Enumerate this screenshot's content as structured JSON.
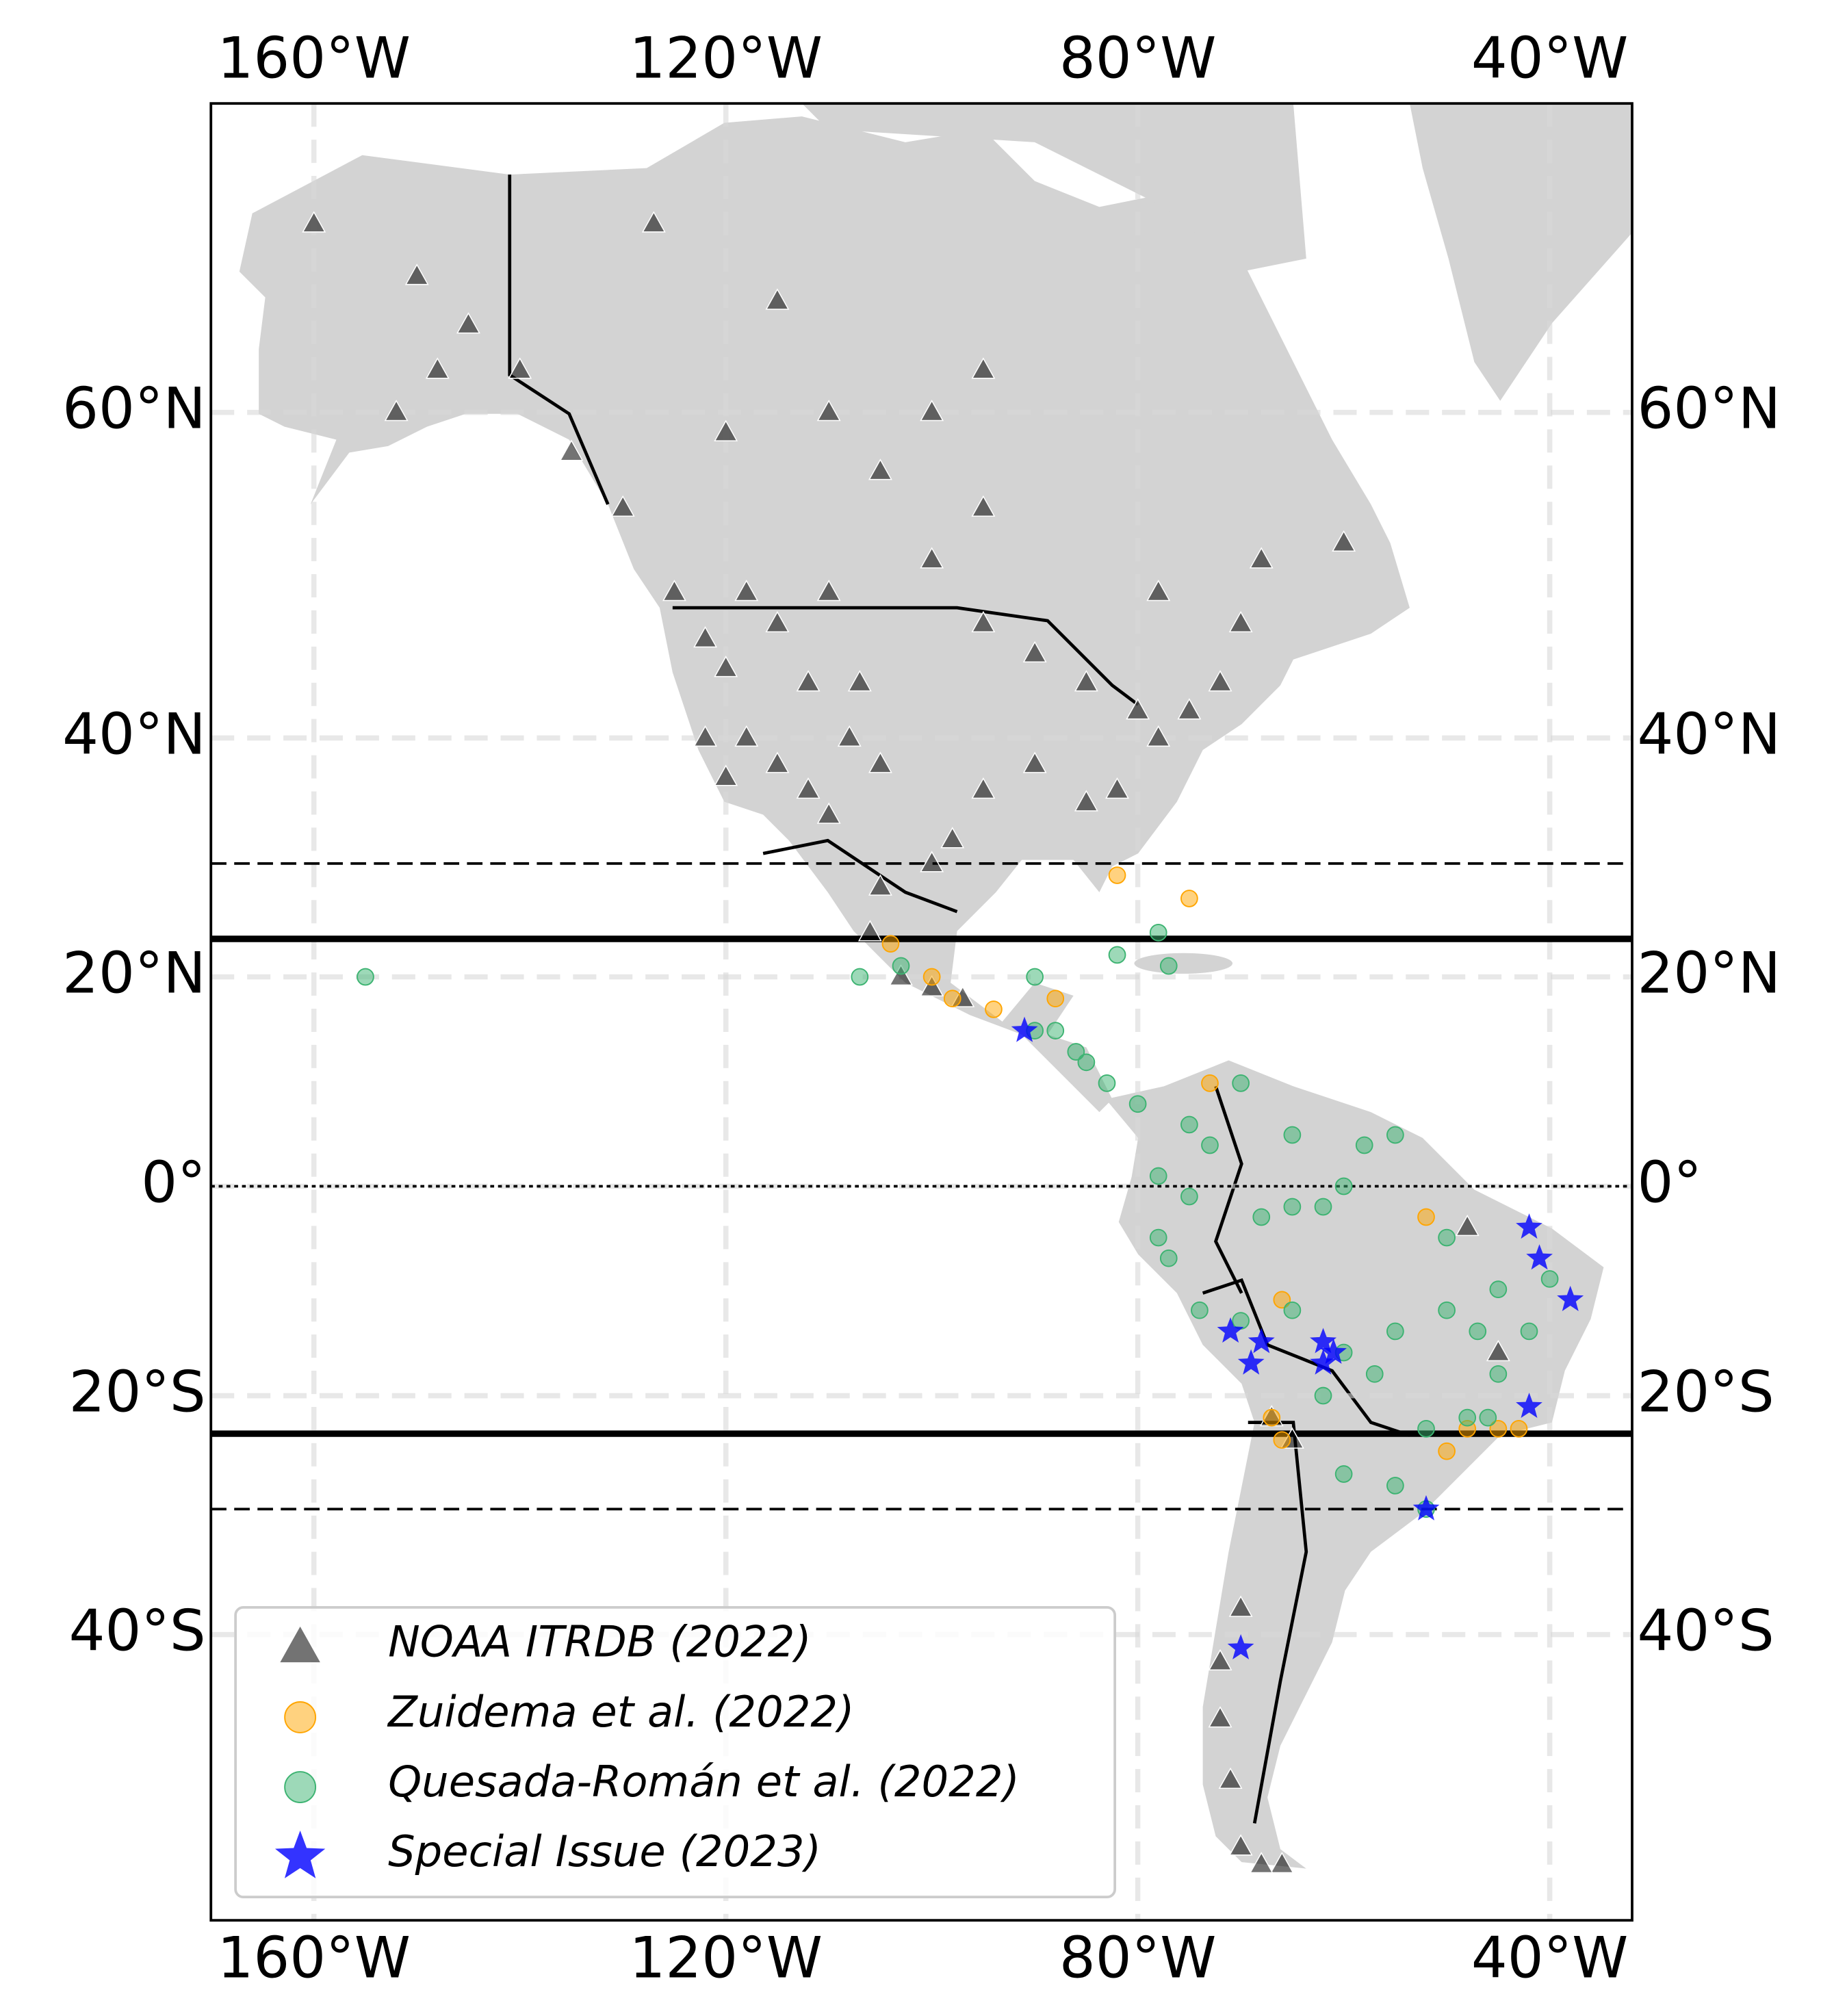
{
  "chart_data": {
    "type": "scatter",
    "projection": "mercator",
    "xlim": [
      -170,
      -32
    ],
    "ylim": [
      -58,
      72
    ],
    "xticks": [
      {
        "value": -160,
        "label": "160°W"
      },
      {
        "value": -120,
        "label": "120°W"
      },
      {
        "value": -80,
        "label": "80°W"
      },
      {
        "value": -40,
        "label": "40°W"
      }
    ],
    "yticks": [
      {
        "value": 60,
        "label": "60°N"
      },
      {
        "value": 40,
        "label": "40°N"
      },
      {
        "value": 20,
        "label": "20°N"
      },
      {
        "value": 0,
        "label": "0°"
      },
      {
        "value": -20,
        "label": "20°S"
      },
      {
        "value": -40,
        "label": "40°S"
      }
    ],
    "grid": true,
    "legend": "lower left",
    "hlines": [
      {
        "value": 30,
        "style": "dashed"
      },
      {
        "value": 23.44,
        "style": "solid"
      },
      {
        "value": 0,
        "style": "dotted"
      },
      {
        "value": -23.44,
        "style": "solid"
      },
      {
        "value": -30,
        "style": "dashed"
      }
    ],
    "series": [
      {
        "name": "NOAA ITRDB (2022)",
        "color": "#555555",
        "marker": "triangle",
        "x": [
          -160,
          -150,
          -148,
          -145,
          -152,
          -140,
          -135,
          -130,
          -125,
          -122,
          -120,
          -118,
          -115,
          -112,
          -110,
          -108,
          -105,
          -107,
          -112,
          -115,
          -118,
          -120,
          -122,
          -110,
          -100,
          -95,
          -90,
          -85,
          -80,
          -78,
          -75,
          -72,
          -82,
          -85,
          -90,
          -95,
          -98,
          -100,
          -105,
          -106,
          -103,
          -100,
          -97,
          -110,
          -100,
          -95,
          -78,
          -70,
          -68,
          -60,
          -115,
          -127,
          -95,
          -120,
          -105,
          -67,
          -65,
          -70,
          -72,
          -72,
          -71,
          -70,
          -66,
          -68,
          -48,
          -45
        ],
        "values": [
          68,
          66,
          62,
          64,
          60,
          62,
          58,
          55,
          50,
          47,
          45,
          40,
          38,
          36,
          34,
          40,
          38,
          44,
          44,
          48,
          50,
          37,
          40,
          50,
          52,
          48,
          46,
          44,
          42,
          40,
          42,
          44,
          36,
          35,
          38,
          36,
          32,
          30,
          28,
          24,
          20,
          19,
          18,
          60,
          60,
          55,
          50,
          48,
          52,
          53,
          65,
          68,
          62,
          59,
          57,
          -22,
          -24,
          -38,
          -42,
          -46,
          -50,
          -54,
          -55,
          -55,
          -4,
          -16
        ]
      },
      {
        "name": "Zuidema et al. (2022)",
        "color": "#ffa500",
        "marker": "circle",
        "x": [
          -75,
          -82,
          -104,
          -98,
          -94,
          -88,
          -66,
          -67,
          -66,
          -48,
          -45,
          -43,
          -52,
          -73,
          -50,
          -100
        ],
        "values": [
          27,
          29,
          23,
          18,
          17,
          18,
          -11,
          -22,
          -24,
          -23,
          -23,
          -23,
          -3,
          10,
          -25,
          20
        ]
      },
      {
        "name": "Quesada-Román et al. (2022)",
        "color": "#3cb371",
        "marker": "circle",
        "x": [
          -155,
          -82,
          -77,
          -83,
          -85,
          -80,
          -75,
          -73,
          -70,
          -65,
          -58,
          -55,
          -60,
          -62,
          -65,
          -68,
          -78,
          -77,
          -74,
          -70,
          -65,
          -60,
          -57,
          -55,
          -50,
          -47,
          -45,
          -42,
          -40,
          -48,
          -46,
          -52,
          -55,
          -60,
          -62,
          -52,
          -90,
          -88,
          -86,
          -78,
          -75,
          -50,
          -45,
          -107,
          -103,
          -78,
          -90
        ],
        "values": [
          20,
          22,
          21,
          10,
          12,
          8,
          6,
          4,
          10,
          5,
          4,
          5,
          0,
          -2,
          -2,
          -3,
          -5,
          -7,
          -12,
          -13,
          -12,
          -16,
          -18,
          -14,
          -12,
          -14,
          -18,
          -14,
          -9,
          -22,
          -22,
          -23,
          -28,
          -27,
          -20,
          -30,
          20,
          15,
          13,
          1,
          -1,
          -5,
          -10,
          20,
          21,
          24,
          15
        ]
      },
      {
        "name": "Special Issue (2023)",
        "color": "#0000ff",
        "marker": "star",
        "x": [
          -91,
          -71,
          -68,
          -69,
          -62,
          -61,
          -62,
          -42,
          -41,
          -38,
          -42,
          -52,
          -70
        ],
        "values": [
          15,
          -14,
          -15,
          -17,
          -15,
          -16,
          -17,
          -4,
          -7,
          -11,
          -21,
          -30,
          -41
        ]
      }
    ]
  }
}
